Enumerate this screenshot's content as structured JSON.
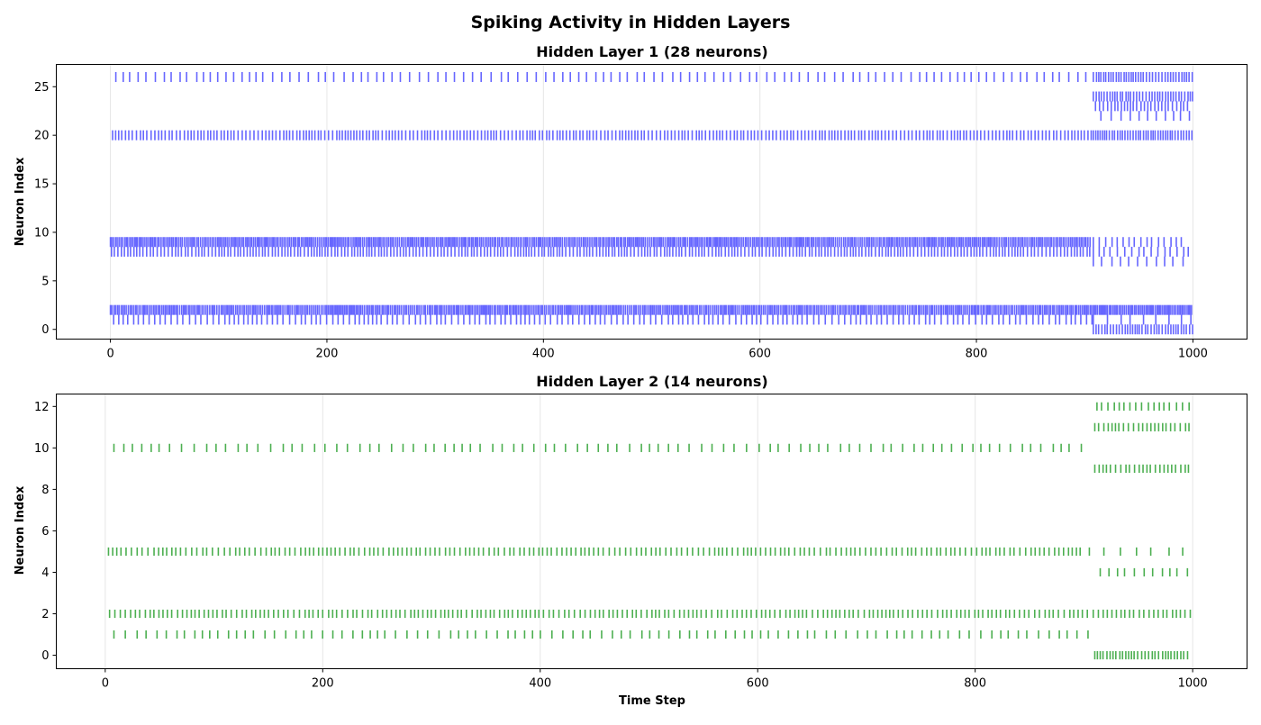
{
  "figure": {
    "title": "Spiking Activity in Hidden Layers"
  },
  "chart_data": [
    {
      "type": "scatter",
      "subtype": "raster",
      "title": "Hidden Layer 1 (28 neurons)",
      "xlabel": "",
      "ylabel": "Neuron Index",
      "xlim": [
        -50,
        1050
      ],
      "ylim": [
        -1,
        27.3
      ],
      "xticks": [
        0,
        200,
        400,
        600,
        800,
        1000
      ],
      "yticks": [
        0,
        5,
        10,
        15,
        20,
        25
      ],
      "grid_x": true,
      "color": "#6666ff",
      "neurons": [
        {
          "index": 26,
          "start": 5,
          "end": 905,
          "period": 7.7,
          "tail": {
            "start": 908,
            "end": 1000,
            "period": 2.4
          }
        },
        {
          "index": 24,
          "start": 908,
          "end": 1000,
          "period": 2.6
        },
        {
          "index": 23,
          "start": 910,
          "end": 998,
          "period": 3.3
        },
        {
          "index": 22,
          "start": 915,
          "end": 1000,
          "period": 7.8
        },
        {
          "index": 20,
          "start": 2,
          "end": 1000,
          "period": 3.2,
          "tail": {
            "start": 908,
            "end": 1000,
            "period": 2.3
          }
        },
        {
          "index": 9,
          "start": 0,
          "end": 905,
          "period": 1.6,
          "tail": {
            "start": 908,
            "end": 993,
            "period": 5.3
          }
        },
        {
          "index": 8,
          "start": 1,
          "end": 998,
          "period": 3.0,
          "tail": {
            "start": 908,
            "end": 998,
            "period": 5.5
          }
        },
        {
          "index": 7,
          "start": 908,
          "end": 1000,
          "period": 8.0
        },
        {
          "index": 2,
          "start": 0,
          "end": 1000,
          "period": 1.6,
          "tail": {
            "start": 908,
            "end": 1000,
            "period": 1.5
          }
        },
        {
          "index": 1,
          "start": 3,
          "end": 998,
          "period": 5.0,
          "tail": {
            "start": 908,
            "end": 1000,
            "period": 10.5
          }
        },
        {
          "index": 0,
          "start": 908,
          "end": 1000,
          "period": 2.5
        }
      ]
    },
    {
      "type": "scatter",
      "subtype": "raster",
      "title": "Hidden Layer 2 (14 neurons)",
      "xlabel": "Time Step",
      "ylabel": "Neuron Index",
      "xlim": [
        -45,
        1050
      ],
      "ylim": [
        -0.65,
        12.6
      ],
      "xticks": [
        0,
        200,
        400,
        600,
        800,
        1000
      ],
      "yticks": [
        0,
        2,
        4,
        6,
        8,
        10,
        12
      ],
      "grid_x": true,
      "color": "#4caf50",
      "neurons": [
        {
          "index": 12,
          "start": 912,
          "end": 1000,
          "period": 5.3
        },
        {
          "index": 11,
          "start": 910,
          "end": 1000,
          "period": 4.0
        },
        {
          "index": 10,
          "start": 8,
          "end": 900,
          "period": 9.6
        },
        {
          "index": 9,
          "start": 910,
          "end": 998,
          "period": 3.9
        },
        {
          "index": 5,
          "start": 3,
          "end": 902,
          "period": 4.5,
          "tail": {
            "start": 905,
            "end": 995,
            "period": 14
          }
        },
        {
          "index": 4,
          "start": 915,
          "end": 1000,
          "period": 8.5
        },
        {
          "index": 2,
          "start": 4,
          "end": 998,
          "period": 4.4
        },
        {
          "index": 1,
          "start": 8,
          "end": 905,
          "period": 8.8
        },
        {
          "index": 0,
          "start": 910,
          "end": 998,
          "period": 3.1
        }
      ]
    }
  ]
}
